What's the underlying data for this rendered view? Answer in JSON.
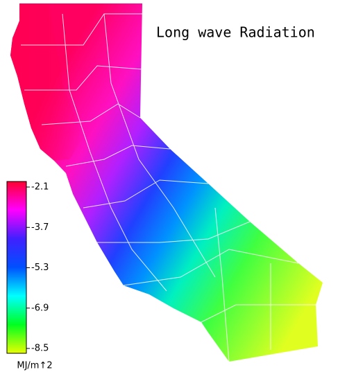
{
  "title": "Long wave Radiation",
  "colorbar": {
    "ticks": [
      -2.1,
      -3.7,
      -5.3,
      -6.9,
      -8.5
    ],
    "colors": [
      "#ff0030",
      "#ff00ff",
      "#4020ff",
      "#0050ff",
      "#00ffff",
      "#00ff20",
      "#e8ff00"
    ],
    "unit": "MJ/m↑2"
  }
}
